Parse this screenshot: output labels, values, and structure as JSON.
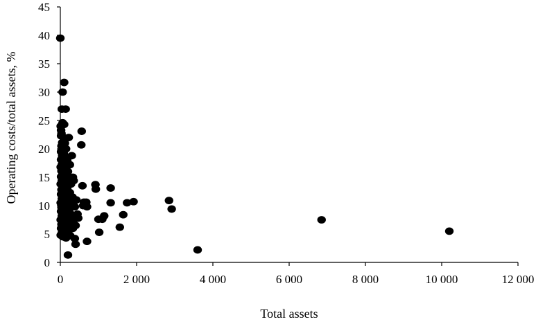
{
  "chart_data": {
    "type": "scatter",
    "title": "",
    "xlabel": "Total assets",
    "ylabel": "Operating costs/total assets, %",
    "xlim": [
      0,
      12000
    ],
    "ylim": [
      0,
      45
    ],
    "x_ticks": [
      0,
      2000,
      4000,
      6000,
      8000,
      10000,
      12000
    ],
    "x_tick_labels": [
      "0",
      "2 000",
      "4 000",
      "6 000",
      "8 000",
      "10 000",
      "12 000"
    ],
    "y_ticks": [
      0,
      5,
      10,
      15,
      20,
      25,
      30,
      35,
      40,
      45
    ],
    "y_tick_labels": [
      "0",
      "5",
      "10",
      "15",
      "20",
      "25",
      "30",
      "35",
      "40",
      "45"
    ],
    "grid": false,
    "legend": "none",
    "marker_color": "#000000",
    "series": [
      {
        "points": [
          [
            0,
            39.5
          ],
          [
            100,
            31.7
          ],
          [
            60,
            30.0
          ],
          [
            40,
            27.0
          ],
          [
            140,
            27.0
          ],
          [
            60,
            24.6
          ],
          [
            100,
            24.3
          ],
          [
            10,
            24.0
          ],
          [
            20,
            23.3
          ],
          [
            30,
            22.7
          ],
          [
            20,
            22.3
          ],
          [
            80,
            22.0
          ],
          [
            50,
            21.1
          ],
          [
            120,
            21.0
          ],
          [
            30,
            20.5
          ],
          [
            80,
            20.3
          ],
          [
            150,
            20.0
          ],
          [
            20,
            19.5
          ],
          [
            90,
            19.2
          ],
          [
            50,
            18.8
          ],
          [
            130,
            18.6
          ],
          [
            20,
            18.1
          ],
          [
            180,
            18.0
          ],
          [
            70,
            17.8
          ],
          [
            110,
            17.5
          ],
          [
            40,
            17.2
          ],
          [
            150,
            17.0
          ],
          [
            10,
            16.8
          ],
          [
            90,
            16.5
          ],
          [
            30,
            16.1
          ],
          [
            200,
            16.0
          ],
          [
            60,
            15.7
          ],
          [
            120,
            15.5
          ],
          [
            20,
            15.1
          ],
          [
            170,
            15.0
          ],
          [
            80,
            14.7
          ],
          [
            40,
            14.4
          ],
          [
            140,
            14.3
          ],
          [
            220,
            14.0
          ],
          [
            10,
            13.8
          ],
          [
            60,
            13.5
          ],
          [
            110,
            13.3
          ],
          [
            180,
            13.1
          ],
          [
            30,
            12.8
          ],
          [
            90,
            12.6
          ],
          [
            150,
            12.4
          ],
          [
            250,
            12.3
          ],
          [
            20,
            12.0
          ],
          [
            70,
            11.8
          ],
          [
            130,
            11.6
          ],
          [
            200,
            11.5
          ],
          [
            40,
            11.2
          ],
          [
            100,
            11.0
          ],
          [
            160,
            10.8
          ],
          [
            280,
            10.7
          ],
          [
            10,
            10.5
          ],
          [
            60,
            10.3
          ],
          [
            120,
            10.1
          ],
          [
            190,
            10.0
          ],
          [
            30,
            9.7
          ],
          [
            90,
            9.5
          ],
          [
            150,
            9.3
          ],
          [
            230,
            9.2
          ],
          [
            20,
            9.0
          ],
          [
            70,
            8.8
          ],
          [
            130,
            8.6
          ],
          [
            200,
            8.5
          ],
          [
            300,
            8.4
          ],
          [
            40,
            8.2
          ],
          [
            100,
            8.0
          ],
          [
            170,
            7.9
          ],
          [
            250,
            7.8
          ],
          [
            10,
            7.5
          ],
          [
            60,
            7.4
          ],
          [
            120,
            7.2
          ],
          [
            190,
            7.1
          ],
          [
            290,
            7.0
          ],
          [
            30,
            6.7
          ],
          [
            90,
            6.5
          ],
          [
            150,
            6.4
          ],
          [
            230,
            6.2
          ],
          [
            20,
            6.0
          ],
          [
            80,
            5.8
          ],
          [
            140,
            5.6
          ],
          [
            210,
            5.5
          ],
          [
            40,
            5.2
          ],
          [
            110,
            5.0
          ],
          [
            180,
            4.9
          ],
          [
            10,
            4.8
          ],
          [
            260,
            4.7
          ],
          [
            70,
            4.5
          ],
          [
            150,
            4.3
          ],
          [
            220,
            22.0
          ],
          [
            300,
            18.8
          ],
          [
            250,
            17.2
          ],
          [
            330,
            15.0
          ],
          [
            280,
            13.8
          ],
          [
            350,
            14.4
          ],
          [
            320,
            11.5
          ],
          [
            420,
            11.0
          ],
          [
            380,
            9.8
          ],
          [
            450,
            8.5
          ],
          [
            350,
            7.5
          ],
          [
            470,
            7.8
          ],
          [
            400,
            6.5
          ],
          [
            330,
            6.0
          ],
          [
            380,
            4.2
          ],
          [
            400,
            3.2
          ],
          [
            200,
            1.3
          ],
          [
            560,
            23.1
          ],
          [
            550,
            20.7
          ],
          [
            580,
            13.5
          ],
          [
            620,
            10.6
          ],
          [
            600,
            10.0
          ],
          [
            700,
            9.8
          ],
          [
            680,
            10.6
          ],
          [
            700,
            3.7
          ],
          [
            920,
            13.7
          ],
          [
            930,
            12.9
          ],
          [
            1000,
            7.6
          ],
          [
            1020,
            5.3
          ],
          [
            1100,
            7.6
          ],
          [
            1150,
            8.2
          ],
          [
            1320,
            13.1
          ],
          [
            1320,
            10.5
          ],
          [
            1560,
            6.2
          ],
          [
            1650,
            8.4
          ],
          [
            1750,
            10.5
          ],
          [
            1920,
            10.7
          ],
          [
            2850,
            10.9
          ],
          [
            2920,
            9.4
          ],
          [
            3600,
            2.2
          ],
          [
            6850,
            7.5
          ],
          [
            10200,
            5.5
          ]
        ]
      }
    ]
  }
}
